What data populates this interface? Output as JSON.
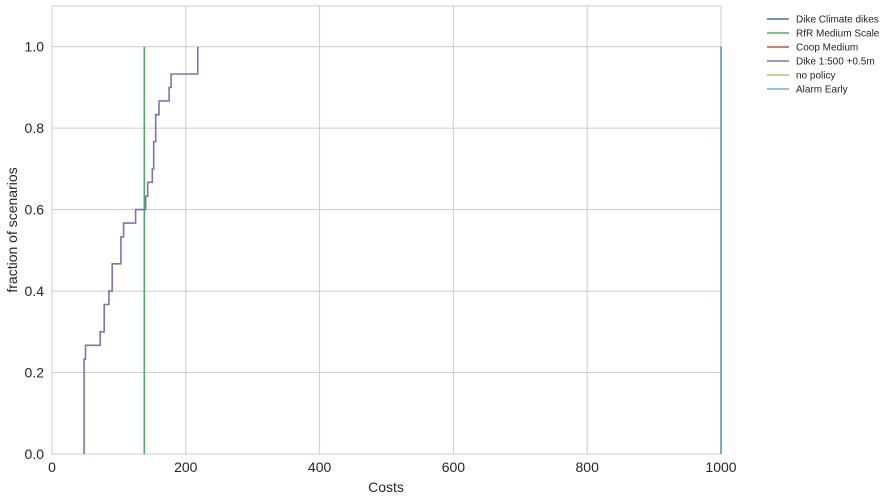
{
  "chart_data": {
    "type": "line",
    "xlabel": "Costs",
    "ylabel": "fraction of scenarios",
    "xlim": [
      0,
      1000
    ],
    "ylim": [
      0,
      1.1
    ],
    "x_ticks": [
      0,
      200,
      400,
      600,
      800,
      1000
    ],
    "y_ticks": [
      0.0,
      0.2,
      0.4,
      0.6,
      0.8,
      1.0
    ],
    "x_tick_labels": [
      "0",
      "200",
      "400",
      "600",
      "800",
      "1000"
    ],
    "y_tick_labels": [
      "0.0",
      "0.2",
      "0.4",
      "0.6",
      "0.8",
      "1.0"
    ],
    "grid": true,
    "legend_position": "outside-top-right",
    "series": [
      {
        "name": "Dike Climate dikes",
        "color": "#4c72b0",
        "x": [
          1000,
          1000
        ],
        "y": [
          0,
          1.0
        ]
      },
      {
        "name": "RfR Medium Scale",
        "color": "#55a868",
        "x": [
          138,
          138
        ],
        "y": [
          0,
          1.0
        ]
      },
      {
        "name": "Coop Medium",
        "color": "#c44e52",
        "x": [
          1000,
          1000
        ],
        "y": [
          0,
          1.0
        ]
      },
      {
        "name": "Dike 1:500 +0.5m",
        "color": "#8172b2",
        "x": [
          48,
          48,
          50,
          50,
          72,
          72,
          78,
          78,
          85,
          85,
          90,
          90,
          95,
          95,
          103,
          103,
          107,
          107,
          125,
          125,
          140,
          140,
          143,
          143,
          150,
          150,
          152,
          152,
          155,
          155,
          160,
          160,
          175,
          175,
          178,
          178,
          181,
          181,
          218,
          218
        ],
        "y": [
          0,
          0.233,
          0.233,
          0.267,
          0.267,
          0.3,
          0.3,
          0.367,
          0.367,
          0.4,
          0.4,
          0.467,
          0.467,
          0.467,
          0.467,
          0.533,
          0.533,
          0.567,
          0.567,
          0.6,
          0.6,
          0.633,
          0.633,
          0.667,
          0.667,
          0.7,
          0.7,
          0.767,
          0.767,
          0.833,
          0.833,
          0.867,
          0.867,
          0.9,
          0.9,
          0.933,
          0.933,
          0.933,
          0.933,
          1.0
        ]
      },
      {
        "name": "no policy",
        "color": "#ccb974",
        "x": [
          1000,
          1000
        ],
        "y": [
          0,
          1.0
        ]
      },
      {
        "name": "Alarm Early",
        "color": "#64b5cd",
        "x": [
          1000,
          1000
        ],
        "y": [
          0,
          1.0
        ]
      }
    ]
  }
}
